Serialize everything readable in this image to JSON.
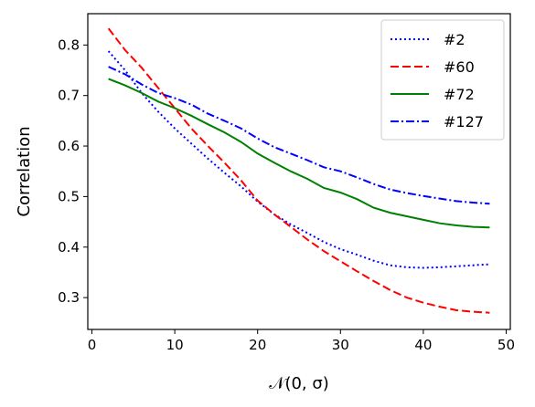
{
  "chart_data": {
    "type": "line",
    "title": "",
    "xlabel": "𝒩(0, σ)",
    "ylabel": "Correlation",
    "xlim": [
      -0.5,
      50.5
    ],
    "ylim": [
      0.237,
      0.862
    ],
    "xticks": [
      0,
      10,
      20,
      30,
      40,
      50
    ],
    "yticks": [
      0.3,
      0.4,
      0.5,
      0.6,
      0.7,
      0.8
    ],
    "grid": false,
    "legend_position": "top-right",
    "series": [
      {
        "name": "#2",
        "color": "#0000ff",
        "linestyle": "dotted",
        "x": [
          2,
          4,
          6,
          8,
          10,
          12,
          14,
          16,
          18,
          20,
          22,
          24,
          26,
          28,
          30,
          32,
          34,
          36,
          38,
          40,
          42,
          44,
          46,
          48
        ],
        "y": [
          0.788,
          0.75,
          0.705,
          0.668,
          0.635,
          0.605,
          0.575,
          0.547,
          0.52,
          0.49,
          0.465,
          0.445,
          0.428,
          0.41,
          0.396,
          0.385,
          0.373,
          0.364,
          0.36,
          0.359,
          0.36,
          0.362,
          0.364,
          0.366
        ]
      },
      {
        "name": "#60",
        "color": "#ff0000",
        "linestyle": "dashed",
        "x": [
          2,
          4,
          6,
          8,
          10,
          12,
          14,
          16,
          18,
          20,
          22,
          24,
          26,
          28,
          30,
          32,
          34,
          36,
          38,
          40,
          42,
          44,
          46,
          48
        ],
        "y": [
          0.833,
          0.79,
          0.755,
          0.715,
          0.675,
          0.635,
          0.6,
          0.567,
          0.532,
          0.492,
          0.465,
          0.44,
          0.415,
          0.392,
          0.372,
          0.352,
          0.333,
          0.315,
          0.3,
          0.29,
          0.282,
          0.275,
          0.272,
          0.27
        ]
      },
      {
        "name": "#72",
        "color": "#008000",
        "linestyle": "solid",
        "x": [
          2,
          4,
          6,
          8,
          10,
          12,
          14,
          16,
          18,
          20,
          22,
          24,
          26,
          28,
          30,
          32,
          34,
          36,
          38,
          40,
          42,
          44,
          46,
          48
        ],
        "y": [
          0.733,
          0.72,
          0.705,
          0.688,
          0.675,
          0.66,
          0.643,
          0.627,
          0.608,
          0.585,
          0.567,
          0.55,
          0.535,
          0.517,
          0.508,
          0.495,
          0.478,
          0.468,
          0.461,
          0.454,
          0.447,
          0.443,
          0.44,
          0.439
        ]
      },
      {
        "name": "#127",
        "color": "#0000ff",
        "linestyle": "dashdot",
        "x": [
          2,
          4,
          6,
          8,
          10,
          12,
          14,
          16,
          18,
          20,
          22,
          24,
          26,
          28,
          30,
          32,
          34,
          36,
          38,
          40,
          42,
          44,
          46,
          48
        ],
        "y": [
          0.757,
          0.742,
          0.722,
          0.705,
          0.695,
          0.682,
          0.664,
          0.65,
          0.635,
          0.615,
          0.598,
          0.585,
          0.572,
          0.558,
          0.55,
          0.538,
          0.525,
          0.514,
          0.507,
          0.501,
          0.496,
          0.491,
          0.488,
          0.486
        ]
      }
    ]
  }
}
